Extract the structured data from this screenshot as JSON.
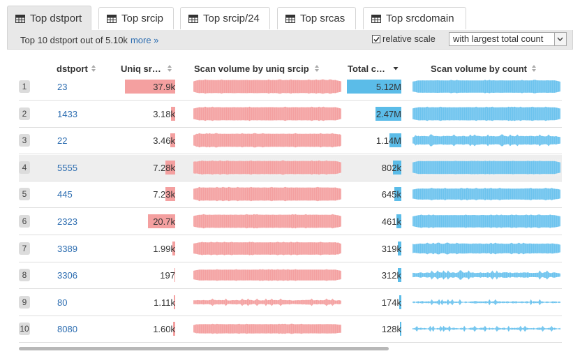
{
  "tabs": [
    {
      "label": "Top dstport",
      "active": true
    },
    {
      "label": "Top srcip",
      "active": false
    },
    {
      "label": "Top srcip/24",
      "active": false
    },
    {
      "label": "Top srcas",
      "active": false
    },
    {
      "label": "Top srcdomain",
      "active": false
    }
  ],
  "toolbar": {
    "summary": "Top 10 dstport out of 5.10k",
    "more_link": "more »",
    "relative_scale_label": "relative scale",
    "relative_scale_checked": true,
    "sort_select_value": "with largest total count"
  },
  "columns": {
    "dstport": "dstport",
    "uniq": "Uniq sr…",
    "scan_uniq": "Scan volume by uniq srcip",
    "total": "Total c…",
    "scan_count": "Scan volume by count"
  },
  "colors": {
    "uniq_bar": "#f4a0a0",
    "uniq_bar_edge": "#e88080",
    "total_bar": "#5bbce8",
    "wave_red": "#f4a0a0",
    "wave_blue": "#6cc3ee"
  },
  "rows": [
    {
      "rank": "1",
      "port": "23",
      "uniq": "37.9k",
      "uniq_frac": 0.92,
      "total": "5.12M",
      "total_frac": 1.0,
      "wave_red_amp": 0.85,
      "wave_blue_amp": 0.8,
      "blue_jagged": 0.1,
      "highlight": false
    },
    {
      "rank": "2",
      "port": "1433",
      "uniq": "3.18k",
      "uniq_frac": 0.075,
      "total": "2.47M",
      "total_frac": 0.48,
      "wave_red_amp": 0.85,
      "wave_blue_amp": 0.85,
      "blue_jagged": 0.1,
      "highlight": false
    },
    {
      "rank": "3",
      "port": "22",
      "uniq": "3.46k",
      "uniq_frac": 0.085,
      "total": "1.14M",
      "total_frac": 0.22,
      "wave_red_amp": 0.85,
      "wave_blue_amp": 0.7,
      "blue_jagged": 0.35,
      "highlight": false
    },
    {
      "rank": "4",
      "port": "5555",
      "uniq": "7.28k",
      "uniq_frac": 0.18,
      "total": "802k",
      "total_frac": 0.16,
      "wave_red_amp": 0.85,
      "wave_blue_amp": 0.8,
      "blue_jagged": 0.05,
      "highlight": true
    },
    {
      "rank": "5",
      "port": "445",
      "uniq": "7.23k",
      "uniq_frac": 0.18,
      "total": "645k",
      "total_frac": 0.13,
      "wave_red_amp": 0.85,
      "wave_blue_amp": 0.75,
      "blue_jagged": 0.15,
      "highlight": false
    },
    {
      "rank": "6",
      "port": "2323",
      "uniq": "20.7k",
      "uniq_frac": 0.5,
      "total": "461k",
      "total_frac": 0.09,
      "wave_red_amp": 0.85,
      "wave_blue_amp": 0.8,
      "blue_jagged": 0.1,
      "highlight": false
    },
    {
      "rank": "7",
      "port": "3389",
      "uniq": "1.99k",
      "uniq_frac": 0.05,
      "total": "319k",
      "total_frac": 0.065,
      "wave_red_amp": 0.8,
      "wave_blue_amp": 0.7,
      "blue_jagged": 0.2,
      "highlight": false
    },
    {
      "rank": "8",
      "port": "3306",
      "uniq": "197",
      "uniq_frac": 0.008,
      "total": "312k",
      "total_frac": 0.06,
      "wave_red_amp": 0.7,
      "wave_blue_amp": 0.55,
      "blue_jagged": 0.6,
      "highlight": false
    },
    {
      "rank": "9",
      "port": "80",
      "uniq": "1.11k",
      "uniq_frac": 0.03,
      "total": "174k",
      "total_frac": 0.035,
      "wave_red_amp": 0.45,
      "wave_blue_amp": 0.35,
      "blue_jagged": 0.9,
      "highlight": false
    },
    {
      "rank": "10",
      "port": "8080",
      "uniq": "1.60k",
      "uniq_frac": 0.04,
      "total": "128k",
      "total_frac": 0.025,
      "wave_red_amp": 0.6,
      "wave_blue_amp": 0.35,
      "blue_jagged": 0.9,
      "highlight": false
    }
  ]
}
